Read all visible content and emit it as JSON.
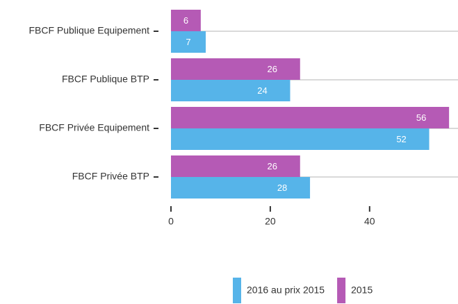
{
  "chart_data": {
    "type": "bar",
    "orientation": "horizontal",
    "categories": [
      "FBCF Publique Equipement",
      "FBCF Publique BTP",
      "FBCF Privée Equipement",
      "FBCF Privée BTP"
    ],
    "series": [
      {
        "name": "2016 au prix 2015",
        "color": "#56b4e9",
        "values": [
          7,
          24,
          52,
          28
        ]
      },
      {
        "name": "2015",
        "color": "#b55ab5",
        "values": [
          6,
          26,
          56,
          26
        ]
      }
    ],
    "xlim": [
      0,
      57.8
    ],
    "xticks": [
      0,
      20,
      40
    ],
    "grid": true,
    "legend": "bottom"
  }
}
